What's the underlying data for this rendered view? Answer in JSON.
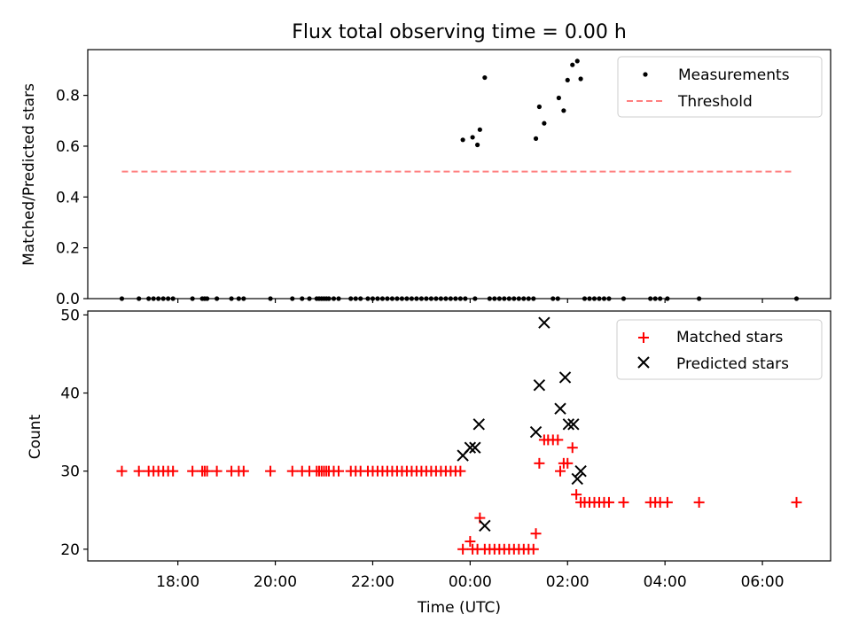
{
  "chart_data": [
    {
      "type": "scatter",
      "title": "Flux total observing time = 0.00 h",
      "xlabel": "",
      "ylabel": "Matched/Predicted stars",
      "ylim": [
        0,
        0.98
      ],
      "yticks": [
        0.0,
        0.2,
        0.4,
        0.6,
        0.8
      ],
      "ytick_labels": [
        "0.0",
        "0.2",
        "0.4",
        "0.6",
        "0.8"
      ],
      "xlim_hours": [
        16.15,
        31.4
      ],
      "legend": {
        "placement": "top-right",
        "entries": [
          {
            "label": "Measurements",
            "marker": "dot",
            "color": "#000000"
          },
          {
            "label": "Threshold",
            "style": "dashed",
            "color": "#ff7f7f"
          }
        ]
      },
      "threshold": {
        "name": "Threshold",
        "value": 0.5,
        "x_start": 16.85,
        "x_end": 30.6,
        "color": "#ff7f7f"
      },
      "series": [
        {
          "name": "Measurements",
          "color": "#000000",
          "points": [
            [
              16.85,
              0
            ],
            [
              17.2,
              0
            ],
            [
              17.4,
              0
            ],
            [
              17.5,
              0
            ],
            [
              17.6,
              0
            ],
            [
              17.7,
              0
            ],
            [
              17.8,
              0
            ],
            [
              17.9,
              0
            ],
            [
              18.3,
              0
            ],
            [
              18.5,
              0
            ],
            [
              18.55,
              0
            ],
            [
              18.6,
              0
            ],
            [
              18.8,
              0
            ],
            [
              19.1,
              0
            ],
            [
              19.25,
              0
            ],
            [
              19.35,
              0
            ],
            [
              19.9,
              0
            ],
            [
              20.35,
              0
            ],
            [
              20.55,
              0
            ],
            [
              20.7,
              0
            ],
            [
              20.85,
              0
            ],
            [
              20.9,
              0
            ],
            [
              20.95,
              0
            ],
            [
              21.0,
              0
            ],
            [
              21.05,
              0
            ],
            [
              21.1,
              0
            ],
            [
              21.2,
              0
            ],
            [
              21.3,
              0
            ],
            [
              21.55,
              0
            ],
            [
              21.65,
              0
            ],
            [
              21.75,
              0
            ],
            [
              21.9,
              0
            ],
            [
              22.0,
              0
            ],
            [
              22.1,
              0
            ],
            [
              22.2,
              0
            ],
            [
              22.3,
              0
            ],
            [
              22.4,
              0
            ],
            [
              22.5,
              0
            ],
            [
              22.6,
              0
            ],
            [
              22.7,
              0
            ],
            [
              22.8,
              0
            ],
            [
              22.9,
              0
            ],
            [
              23.0,
              0
            ],
            [
              23.1,
              0
            ],
            [
              23.2,
              0
            ],
            [
              23.3,
              0
            ],
            [
              23.4,
              0
            ],
            [
              23.5,
              0
            ],
            [
              23.6,
              0
            ],
            [
              23.7,
              0
            ],
            [
              23.8,
              0
            ],
            [
              23.9,
              0
            ],
            [
              24.1,
              0
            ],
            [
              24.4,
              0
            ],
            [
              24.5,
              0
            ],
            [
              24.6,
              0
            ],
            [
              24.7,
              0
            ],
            [
              24.8,
              0
            ],
            [
              24.9,
              0
            ],
            [
              25.0,
              0
            ],
            [
              25.1,
              0
            ],
            [
              25.2,
              0
            ],
            [
              25.3,
              0
            ],
            [
              25.7,
              0
            ],
            [
              25.8,
              0
            ],
            [
              26.35,
              0
            ],
            [
              26.45,
              0
            ],
            [
              26.55,
              0
            ],
            [
              26.65,
              0
            ],
            [
              26.75,
              0
            ],
            [
              26.85,
              0
            ],
            [
              27.15,
              0
            ],
            [
              27.7,
              0
            ],
            [
              27.8,
              0
            ],
            [
              27.9,
              0
            ],
            [
              28.05,
              0
            ],
            [
              28.7,
              0
            ],
            [
              30.7,
              0
            ],
            [
              23.85,
              0.625
            ],
            [
              24.05,
              0.635
            ],
            [
              24.15,
              0.605
            ],
            [
              24.2,
              0.665
            ],
            [
              24.3,
              0.87
            ],
            [
              25.35,
              0.63
            ],
            [
              25.42,
              0.755
            ],
            [
              25.52,
              0.69
            ],
            [
              25.82,
              0.79
            ],
            [
              25.92,
              0.74
            ],
            [
              26.0,
              0.86
            ],
            [
              26.1,
              0.92
            ],
            [
              26.2,
              0.935
            ],
            [
              26.27,
              0.865
            ]
          ]
        }
      ]
    },
    {
      "type": "scatter",
      "title": "",
      "xlabel": "Time (UTC)",
      "ylabel": "Count",
      "ylim": [
        18.5,
        50.5
      ],
      "yticks": [
        20,
        30,
        40,
        50
      ],
      "ytick_labels": [
        "20",
        "30",
        "40",
        "50"
      ],
      "xlim_hours": [
        16.15,
        31.4
      ],
      "xticks_hours": [
        18,
        20,
        22,
        24,
        26,
        28,
        30
      ],
      "xtick_labels": [
        "18:00",
        "20:00",
        "22:00",
        "00:00",
        "02:00",
        "04:00",
        "06:00"
      ],
      "legend": {
        "placement": "top-right",
        "entries": [
          {
            "label": "Matched stars",
            "marker": "plus",
            "color": "#ff0000"
          },
          {
            "label": "Predicted stars",
            "marker": "x",
            "color": "#000000"
          }
        ]
      },
      "series": [
        {
          "name": "Matched stars",
          "marker": "plus",
          "color": "#ff0000",
          "points": [
            [
              16.85,
              30
            ],
            [
              17.2,
              30
            ],
            [
              17.4,
              30
            ],
            [
              17.5,
              30
            ],
            [
              17.6,
              30
            ],
            [
              17.7,
              30
            ],
            [
              17.8,
              30
            ],
            [
              17.9,
              30
            ],
            [
              18.3,
              30
            ],
            [
              18.5,
              30
            ],
            [
              18.55,
              30
            ],
            [
              18.6,
              30
            ],
            [
              18.8,
              30
            ],
            [
              19.1,
              30
            ],
            [
              19.25,
              30
            ],
            [
              19.35,
              30
            ],
            [
              19.9,
              30
            ],
            [
              20.35,
              30
            ],
            [
              20.55,
              30
            ],
            [
              20.7,
              30
            ],
            [
              20.85,
              30
            ],
            [
              20.9,
              30
            ],
            [
              20.95,
              30
            ],
            [
              21.0,
              30
            ],
            [
              21.05,
              30
            ],
            [
              21.1,
              30
            ],
            [
              21.2,
              30
            ],
            [
              21.3,
              30
            ],
            [
              21.55,
              30
            ],
            [
              21.65,
              30
            ],
            [
              21.75,
              30
            ],
            [
              21.9,
              30
            ],
            [
              22.0,
              30
            ],
            [
              22.1,
              30
            ],
            [
              22.2,
              30
            ],
            [
              22.3,
              30
            ],
            [
              22.4,
              30
            ],
            [
              22.5,
              30
            ],
            [
              22.6,
              30
            ],
            [
              22.7,
              30
            ],
            [
              22.8,
              30
            ],
            [
              22.9,
              30
            ],
            [
              23.0,
              30
            ],
            [
              23.1,
              30
            ],
            [
              23.2,
              30
            ],
            [
              23.3,
              30
            ],
            [
              23.4,
              30
            ],
            [
              23.5,
              30
            ],
            [
              23.6,
              30
            ],
            [
              23.7,
              30
            ],
            [
              23.8,
              30
            ],
            [
              23.85,
              20
            ],
            [
              24.0,
              21
            ],
            [
              24.05,
              20
            ],
            [
              24.15,
              20
            ],
            [
              24.2,
              24
            ],
            [
              24.3,
              20
            ],
            [
              24.4,
              20
            ],
            [
              24.5,
              20
            ],
            [
              24.6,
              20
            ],
            [
              24.7,
              20
            ],
            [
              24.8,
              20
            ],
            [
              24.9,
              20
            ],
            [
              25.0,
              20
            ],
            [
              25.1,
              20
            ],
            [
              25.2,
              20
            ],
            [
              25.3,
              20
            ],
            [
              25.35,
              22
            ],
            [
              25.42,
              31
            ],
            [
              25.52,
              34
            ],
            [
              25.6,
              34
            ],
            [
              25.7,
              34
            ],
            [
              25.8,
              34
            ],
            [
              25.85,
              30
            ],
            [
              25.92,
              31
            ],
            [
              26.0,
              31
            ],
            [
              26.1,
              33
            ],
            [
              26.18,
              27
            ],
            [
              26.27,
              26
            ],
            [
              26.35,
              26
            ],
            [
              26.45,
              26
            ],
            [
              26.55,
              26
            ],
            [
              26.65,
              26
            ],
            [
              26.75,
              26
            ],
            [
              26.85,
              26
            ],
            [
              27.15,
              26
            ],
            [
              27.7,
              26
            ],
            [
              27.8,
              26
            ],
            [
              27.9,
              26
            ],
            [
              28.05,
              26
            ],
            [
              28.7,
              26
            ],
            [
              30.7,
              26
            ]
          ]
        },
        {
          "name": "Predicted stars",
          "marker": "x",
          "color": "#000000",
          "points": [
            [
              23.85,
              32
            ],
            [
              24.0,
              33
            ],
            [
              24.1,
              33
            ],
            [
              24.18,
              36
            ],
            [
              24.3,
              23
            ],
            [
              25.35,
              35
            ],
            [
              25.42,
              41
            ],
            [
              25.52,
              49
            ],
            [
              25.85,
              38
            ],
            [
              25.95,
              42
            ],
            [
              26.02,
              36
            ],
            [
              26.12,
              36
            ],
            [
              26.2,
              29
            ],
            [
              26.27,
              30
            ]
          ]
        }
      ]
    }
  ]
}
